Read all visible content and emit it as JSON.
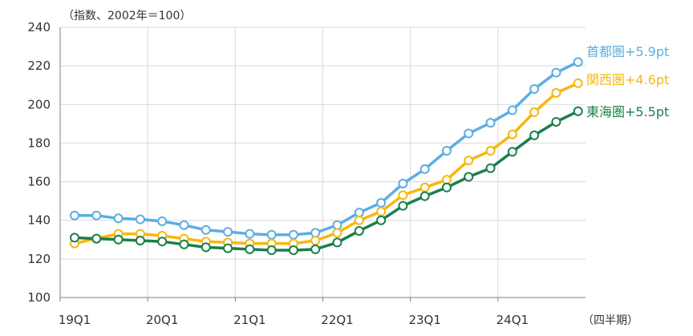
{
  "chart_data": {
    "type": "line",
    "y_note": "（指数、2002年＝100）",
    "x_unit": "（四半期）",
    "x": [
      "19Q1",
      "19Q2",
      "19Q3",
      "19Q4",
      "20Q1",
      "20Q2",
      "20Q3",
      "20Q4",
      "21Q1",
      "21Q2",
      "21Q3",
      "21Q4",
      "22Q1",
      "22Q2",
      "22Q3",
      "22Q4",
      "23Q1",
      "23Q2",
      "23Q3",
      "23Q4",
      "24Q1",
      "24Q2",
      "24Q3",
      "24Q4"
    ],
    "x_tick_labels": [
      "19Q1",
      "20Q1",
      "21Q1",
      "22Q1",
      "23Q1",
      "24Q1"
    ],
    "ylim": [
      100,
      240
    ],
    "y_ticks": [
      100,
      120,
      140,
      160,
      180,
      200,
      220,
      240
    ],
    "grid": true,
    "series": [
      {
        "name": "首都圏+5.9pt",
        "color": "#5DADE2",
        "values": [
          142.5,
          142.5,
          141,
          140.5,
          139.5,
          137.5,
          135,
          134,
          133,
          132.5,
          132.5,
          133.5,
          137.5,
          144,
          149,
          159,
          166.5,
          176,
          185,
          190.5,
          197,
          208,
          216.5,
          222
        ]
      },
      {
        "name": "関西圏+4.6pt",
        "color": "#F5B80F",
        "values": [
          128,
          130.5,
          133,
          133,
          132,
          130.5,
          129,
          128.5,
          128,
          128,
          128,
          129.5,
          133.5,
          140,
          144.5,
          153,
          157,
          161,
          171,
          176,
          184.5,
          196,
          206,
          211
        ]
      },
      {
        "name": "東海圏+5.5pt",
        "color": "#1A7F4B",
        "values": [
          131,
          130.5,
          130,
          129.5,
          129,
          127.5,
          126,
          125.5,
          125,
          124.5,
          124.5,
          125,
          128.5,
          134.5,
          140,
          147.5,
          152.5,
          157,
          162.5,
          167,
          175.5,
          184,
          191,
          196.5
        ]
      }
    ]
  }
}
